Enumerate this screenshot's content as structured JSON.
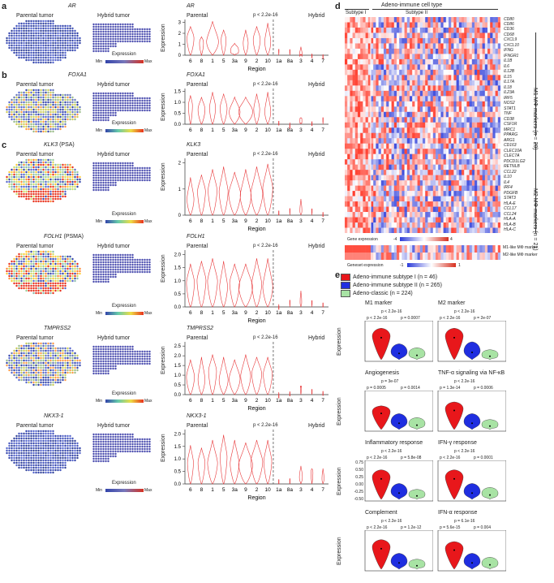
{
  "panel_labels": {
    "a": "a",
    "b": "b",
    "c": "c",
    "d": "d",
    "e": "e"
  },
  "tissue_titles": {
    "parental": "Parental tumor",
    "hybrid": "Hybrid tumor"
  },
  "expression_legend": {
    "title": "Expression",
    "min": "Min",
    "max": "Max"
  },
  "violin_common": {
    "parental": "Parental",
    "hybrid": "Hybrid",
    "pvalue": "p < 2.2e-16",
    "ylabel": "Expression",
    "xlabel": "Region",
    "regions": [
      "6",
      "8",
      "1",
      "5",
      "3a",
      "9",
      "2",
      "10",
      "1a",
      "8a",
      "3",
      "4",
      "7"
    ]
  },
  "rows": [
    {
      "label": "a",
      "gene": "AR",
      "subtitle": "",
      "map_color": "blue",
      "ticks": [
        "0",
        "1",
        "2",
        "3"
      ],
      "widths": [
        0.35,
        0.2,
        0.6,
        0.25,
        0.4,
        0.25,
        0.35,
        0.3,
        0,
        0,
        0.12,
        0,
        0
      ],
      "heights": [
        0.85,
        0.55,
        1.0,
        0.75,
        0.35,
        0.75,
        0.85,
        0.95,
        0.03,
        0.03,
        0.25,
        0.02,
        0.02
      ]
    },
    {
      "label": "b",
      "gene": "FOXA1",
      "subtitle": "",
      "map_color": "mixed",
      "ticks": [
        "0.0",
        "0.5",
        "1.0",
        "1.5"
      ],
      "widths": [
        0.2,
        0.35,
        0.3,
        0.35,
        0.55,
        0.7,
        0.3,
        0.3,
        0,
        0,
        0.1,
        0,
        0
      ],
      "heights": [
        0.85,
        0.8,
        0.95,
        0.9,
        0.8,
        0.8,
        0.9,
        0.95,
        0.05,
        0.05,
        0.2,
        0.05,
        0.05
      ]
    },
    {
      "label": "c",
      "gene": "KLK3",
      "subtitle": " (PSA)",
      "map_color": "hot",
      "ticks": [
        "0",
        "1",
        "2"
      ],
      "widths": [
        0.35,
        0.4,
        0.45,
        0.45,
        0.6,
        0.55,
        0.6,
        0.5,
        0,
        0,
        0.1,
        0,
        0
      ],
      "heights": [
        0.7,
        0.75,
        0.85,
        0.9,
        0.8,
        0.85,
        0.9,
        0.95,
        0.05,
        0.05,
        0.3,
        0.05,
        0.05
      ]
    },
    {
      "label": "",
      "gene": "FOLH1",
      "subtitle": " (PSMA)",
      "map_color": "hot",
      "ticks": [
        "0.0",
        "0.5",
        "1.0",
        "1.5",
        "2.0"
      ],
      "widths": [
        0.4,
        0.45,
        0.5,
        0.4,
        0.5,
        0.7,
        0.5,
        0.5,
        0,
        0,
        0.08,
        0,
        0
      ],
      "heights": [
        0.8,
        0.85,
        0.9,
        0.85,
        0.8,
        0.8,
        0.9,
        0.9,
        0.05,
        0.05,
        0.3,
        0.05,
        0.05
      ]
    },
    {
      "label": "",
      "gene": "TMPRSS2",
      "subtitle": "",
      "map_color": "mixed",
      "ticks": [
        "0.0",
        "0.5",
        "1.0",
        "1.5",
        "2.0",
        "2.5"
      ],
      "widths": [
        0.4,
        0.35,
        0.4,
        0.45,
        0.55,
        0.5,
        0.5,
        0.45,
        0,
        0,
        0.05,
        0,
        0
      ],
      "heights": [
        0.7,
        0.75,
        0.8,
        0.75,
        0.7,
        0.8,
        0.75,
        0.75,
        0.05,
        0.05,
        0.15,
        0.05,
        0.05
      ]
    },
    {
      "label": "",
      "gene": "NKX3-1",
      "subtitle": "",
      "map_color": "blue",
      "ticks": [
        "0.0",
        "0.5",
        "1.0",
        "1.5",
        "2.0"
      ],
      "widths": [
        0.3,
        0.35,
        0.5,
        0.35,
        0.45,
        0.7,
        0.6,
        0.4,
        0,
        0,
        0.15,
        0.1,
        0.1
      ],
      "heights": [
        0.75,
        0.7,
        0.85,
        0.95,
        0.85,
        0.8,
        0.85,
        0.85,
        0.05,
        0.1,
        0.35,
        0.3,
        0.3
      ]
    }
  ],
  "heatmap": {
    "title": "Adeno-immune cell type",
    "subtype1": "Subtype I",
    "subtype2": "Subtype II",
    "genes": [
      "CD80",
      "CD86",
      "CD36",
      "CD68",
      "CXCL9",
      "CXCL10",
      "IFNG",
      "IFNGR1",
      "IL1B",
      "IL6",
      "IL12B",
      "IL15",
      "IL17A",
      "IL18",
      "IL23A",
      "IRF5",
      "NOS2",
      "STAT1",
      "TNF",
      "CD38",
      "CSF1R",
      "MRC1",
      "PPARG",
      "ARG1",
      "CD163",
      "CLEC10A",
      "CLEC7A",
      "PDCD1LG2",
      "RETNLB",
      "CCL22",
      "IL10",
      "IL4",
      "IRF4",
      "PDGFB",
      "STAT3",
      "HLA-E",
      "CCL17",
      "CCL24",
      "HLA-A",
      "HLA-B",
      "HLA-C"
    ],
    "m1_label": "M1 MΦ markers (n = 20)",
    "m2_label": "M2 MΦ markers (n = 21)",
    "gene_expr": "Gene expression",
    "gene_min": "-4",
    "gene_max": "4",
    "geneset_expr": "Geneset expression",
    "geneset_min": "-1",
    "geneset_max": "1",
    "m1_like": "M1-like MΦ marker",
    "m2_like": "M2-like MΦ marker",
    "colors": {
      "red": "#d7301f",
      "blue": "#2b3bd9",
      "white": "#ffffff"
    }
  },
  "violins_e": {
    "legend": [
      {
        "label": "Adeno-immune subtype I (n = 46)",
        "color": "#e8171b"
      },
      {
        "label": "Adeno-immune subtype II (n = 265)",
        "color": "#1f2ee0"
      },
      {
        "label": "Adeno-classic (n = 224)",
        "color": "#a8e3a4"
      }
    ],
    "ylabel": "Expression",
    "plots": [
      {
        "title": "M1 marker",
        "p_top": "p < 2.2e-16",
        "p_left": "p < 2.2e-16",
        "p_right": "p = 0.0007",
        "ticks": [],
        "shape": [
          0.85,
          0.45,
          0.35
        ]
      },
      {
        "title": "M2 marker",
        "p_top": "p < 2.2e-16",
        "p_left": "p < 2.2e-16",
        "p_right": "p = 2e-07",
        "ticks": [],
        "shape": [
          0.85,
          0.5,
          0.3
        ]
      },
      {
        "title": "Angiogenesis",
        "p_top": "p = 3e-07",
        "p_left": "p = 0.0005",
        "p_right": "p = 0.0014",
        "ticks": [],
        "shape": [
          0.65,
          0.45,
          0.35
        ]
      },
      {
        "title": "TNF-α signaling via NF-κB",
        "p_top": "p < 2.2e-16",
        "p_left": "p = 1.3e-14",
        "p_right": "p = 0.0006",
        "ticks": [],
        "shape": [
          0.75,
          0.45,
          0.3
        ]
      },
      {
        "title": "Inflammatory response",
        "p_top": "p < 2.2e-16",
        "p_left": "p < 2.2e-16",
        "p_right": "p = 5.8e-08",
        "ticks": [
          "0.75",
          "0.50",
          "0.25",
          "0.00",
          "-0.25",
          "-0.50"
        ],
        "shape": [
          0.8,
          0.45,
          0.3
        ]
      },
      {
        "title": "IFN-γ response",
        "p_top": "p < 2.2e-16",
        "p_left": "p < 2.2e-16",
        "p_right": "p = 0.0001",
        "ticks": [],
        "shape": [
          0.8,
          0.45,
          0.35
        ]
      },
      {
        "title": "Complement",
        "p_top": "p < 2.2e-16",
        "p_left": "p < 2.2e-16",
        "p_right": "p = 1.2e-12",
        "ticks": [],
        "shape": [
          0.8,
          0.45,
          0.3
        ]
      },
      {
        "title": "IFN-α response",
        "p_top": "p = 6.1e-16",
        "p_left": "p = 5.6e-15",
        "p_right": "p = 0.004",
        "ticks": [],
        "shape": [
          0.75,
          0.45,
          0.35
        ]
      }
    ]
  }
}
